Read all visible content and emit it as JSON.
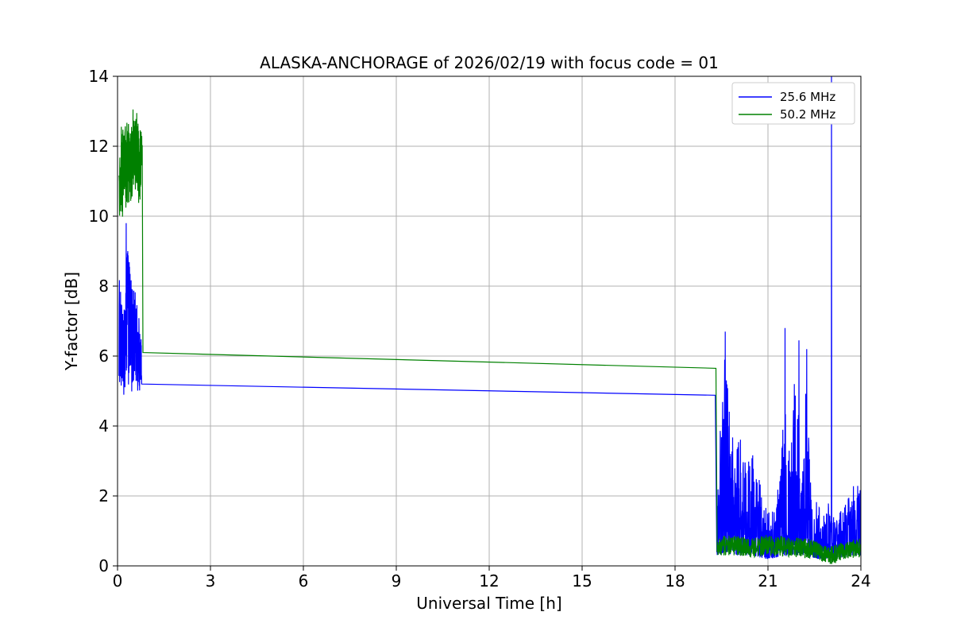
{
  "figure": {
    "background": "#ffffff"
  },
  "chart_data": {
    "type": "line",
    "title": "ALASKA-ANCHORAGE of 2026/02/19 with focus code = 01",
    "xlabel": "Universal Time [h]",
    "ylabel": "Y-factor [dB]",
    "xlim": [
      0,
      24
    ],
    "ylim": [
      0,
      14
    ],
    "xticks": [
      0,
      3,
      6,
      9,
      12,
      15,
      18,
      21,
      24
    ],
    "yticks": [
      0,
      2,
      4,
      6,
      8,
      10,
      12,
      14
    ],
    "grid": true,
    "grid_color": "#b0b0b0",
    "axis_color": "#000000",
    "legend": {
      "position": "upper right",
      "border_color": "#cccccc",
      "background": "#ffffff"
    },
    "series": [
      {
        "name": "25.6 MHz",
        "color": "#0000ff",
        "segments": [
          {
            "type": "noise",
            "dx": 0.004,
            "bias": 1.0,
            "envelope": [
              [
                0.05,
                5.2,
                8.4
              ],
              [
                0.12,
                4.9,
                7.6
              ],
              [
                0.2,
                4.85,
                7.0
              ],
              [
                0.28,
                5.0,
                9.2
              ],
              [
                0.35,
                5.1,
                8.9
              ],
              [
                0.45,
                4.9,
                8.2
              ],
              [
                0.55,
                5.2,
                8.0
              ],
              [
                0.65,
                5.0,
                7.4
              ],
              [
                0.78,
                5.0,
                6.5
              ]
            ],
            "spikes": [
              [
                0.28,
                9.8
              ],
              [
                0.33,
                9.0
              ]
            ]
          },
          {
            "type": "line",
            "points": [
              [
                0.78,
                5.2
              ],
              [
                19.3,
                4.88
              ]
            ]
          },
          {
            "type": "noise",
            "dx": 0.006,
            "bias": 1.8,
            "envelope": [
              [
                19.35,
                0.3,
                1.5
              ],
              [
                19.45,
                0.3,
                4.2
              ],
              [
                19.6,
                0.4,
                6.0
              ],
              [
                19.75,
                0.3,
                4.6
              ],
              [
                19.9,
                0.3,
                3.6
              ],
              [
                20.1,
                0.3,
                3.9
              ],
              [
                20.3,
                0.3,
                3.0
              ],
              [
                20.5,
                0.3,
                3.4
              ],
              [
                20.7,
                0.25,
                2.6
              ],
              [
                20.9,
                0.2,
                1.7
              ],
              [
                21.1,
                0.2,
                1.5
              ],
              [
                21.3,
                0.25,
                2.3
              ],
              [
                21.45,
                0.3,
                3.5
              ],
              [
                21.55,
                0.3,
                5.8
              ],
              [
                21.7,
                0.3,
                4.2
              ],
              [
                21.85,
                0.3,
                5.2
              ],
              [
                22.0,
                0.3,
                5.6
              ],
              [
                22.1,
                0.3,
                4.0
              ],
              [
                22.25,
                0.3,
                5.4
              ],
              [
                22.4,
                0.25,
                2.4
              ],
              [
                22.6,
                0.2,
                1.8
              ],
              [
                22.8,
                0.2,
                1.5
              ],
              [
                23.0,
                0.2,
                1.9
              ],
              [
                23.2,
                0.2,
                1.4
              ],
              [
                23.4,
                0.25,
                1.7
              ],
              [
                23.6,
                0.3,
                2.1
              ],
              [
                23.8,
                0.3,
                2.4
              ],
              [
                24.0,
                0.3,
                2.7
              ]
            ],
            "spikes": [
              [
                19.62,
                6.7
              ],
              [
                21.55,
                6.8
              ],
              [
                21.85,
                5.2
              ],
              [
                22.0,
                6.45
              ],
              [
                22.25,
                6.2
              ],
              [
                23.05,
                14.0
              ]
            ]
          }
        ]
      },
      {
        "name": "50.2 MHz",
        "color": "#008000",
        "segments": [
          {
            "type": "noise",
            "dx": 0.004,
            "bias": 0.9,
            "envelope": [
              [
                0.05,
                9.9,
                11.2
              ],
              [
                0.12,
                9.7,
                12.6
              ],
              [
                0.2,
                10.0,
                12.7
              ],
              [
                0.3,
                10.3,
                12.9
              ],
              [
                0.4,
                10.1,
                12.5
              ],
              [
                0.5,
                10.4,
                12.9
              ],
              [
                0.6,
                10.6,
                13.0
              ],
              [
                0.7,
                10.3,
                12.8
              ],
              [
                0.8,
                10.9,
                12.2
              ]
            ],
            "spikes": [
              [
                0.5,
                13.05
              ],
              [
                0.62,
                12.95
              ]
            ]
          },
          {
            "type": "line",
            "points": [
              [
                0.82,
                6.1
              ],
              [
                19.32,
                5.65
              ]
            ]
          },
          {
            "type": "noise",
            "dx": 0.006,
            "bias": 1.1,
            "envelope": [
              [
                19.36,
                0.3,
                0.9
              ],
              [
                20.0,
                0.3,
                0.85
              ],
              [
                20.5,
                0.25,
                0.8
              ],
              [
                21.0,
                0.3,
                0.9
              ],
              [
                21.5,
                0.25,
                0.85
              ],
              [
                22.0,
                0.25,
                0.8
              ],
              [
                22.5,
                0.2,
                0.75
              ],
              [
                22.9,
                0.0,
                0.55
              ],
              [
                23.1,
                0.05,
                0.6
              ],
              [
                23.5,
                0.2,
                0.7
              ],
              [
                24.0,
                0.25,
                0.8
              ]
            ]
          }
        ]
      }
    ]
  }
}
